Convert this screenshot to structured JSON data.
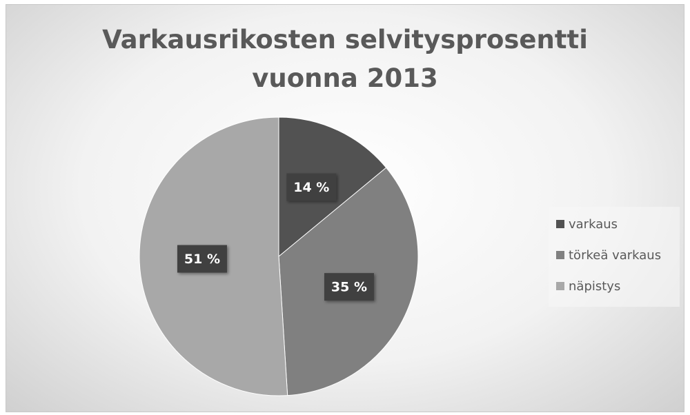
{
  "chart_data": {
    "type": "pie",
    "title": "Varkausrikosten selvitysprosentti vuonna 2013",
    "categories": [
      "varkaus",
      "törkeä varkaus",
      "näpistys"
    ],
    "values": [
      14,
      35,
      51
    ],
    "value_labels": [
      "14 %",
      "35 %",
      "51 %"
    ],
    "colors": [
      "#525252",
      "#808080",
      "#a8a8a8"
    ],
    "legend": "right"
  }
}
